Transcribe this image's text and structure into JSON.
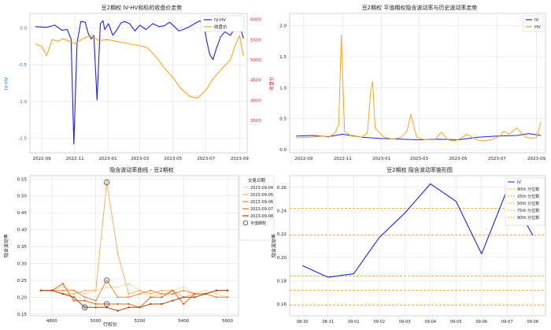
{
  "figure": {
    "panels": [
      {
        "title": "豆2期权 IV-HV和标的收盘价走势",
        "type": "line",
        "xticks": [
          "2022-09",
          "2022-11",
          "2023-01",
          "2023-03",
          "2023-05",
          "2023-07",
          "2023-09"
        ],
        "ylabel_left": "IV-HV",
        "ylabel_right": "收盘价",
        "yticks_left": [
          "0.0",
          "-0.5",
          "-1.0",
          "-1.5"
        ],
        "yticks_right": [
          "6000",
          "5500",
          "5000",
          "4500",
          "4000",
          "3500"
        ],
        "legend": [
          "IV-HV",
          "收盘价"
        ]
      },
      {
        "title": "豆2期权 平值期权隐含波动率与历史波动率走势",
        "type": "line",
        "xticks": [
          "2022-09",
          "2022-11",
          "2023-01",
          "2023-03",
          "2023-05",
          "2023-07",
          "2023-09"
        ],
        "yticks": [
          "2.0",
          "1.5",
          "1.0",
          "0.5",
          "0.0"
        ],
        "legend": [
          "IV",
          "HV"
        ]
      },
      {
        "title": "隐含波动率曲线 - 豆2期权",
        "type": "line",
        "xlabel": "行权价",
        "ylabel": "隐含波动率",
        "xticks": [
          "4800",
          "5000",
          "5200",
          "5400",
          "5600"
        ],
        "yticks": [
          "0.55",
          "0.50",
          "0.45",
          "0.40",
          "0.35",
          "0.30",
          "0.25",
          "0.20",
          "0.15"
        ],
        "legend_title": "交易日期",
        "legend": [
          "2023-09-04",
          "2023-09-05",
          "2023-09-06",
          "2023-09-07",
          "2023-09-08",
          "平值期权"
        ]
      },
      {
        "title": "豆2期权 隐含波动率锥形图",
        "type": "line",
        "ylabel": "隐含波动率",
        "xticks": [
          "08-30",
          "08-31",
          "09-01",
          "09-02",
          "09-03",
          "09-04",
          "09-05",
          "09-06",
          "09-07",
          "09-08"
        ],
        "yticks": [
          "0.26",
          "0.24",
          "0.22",
          "0.20",
          "0.18",
          "0.16"
        ],
        "legend": [
          "IV",
          "90th 分位数",
          "25th 分位数",
          "50th 分位数",
          "75th 分位数",
          "90th 分位数"
        ]
      }
    ]
  },
  "chart_data": [
    {
      "type": "line",
      "title": "豆2期权 IV-HV和标的收盘价走势",
      "ylabel": "IV-HV",
      "y2label": "收盘价",
      "ylim": [
        -1.7,
        0.2
      ],
      "y2lim": [
        2700,
        6150
      ],
      "x_range": [
        "2022-08-10",
        "2023-09-15"
      ],
      "series": [
        {
          "name": "IV-HV",
          "color": "#1f22e0",
          "axis": "left",
          "x": [
            "2022-08-20",
            "2022-09-10",
            "2022-09-25",
            "2022-10-08",
            "2022-10-18",
            "2022-10-25",
            "2022-10-30",
            "2022-11-05",
            "2022-11-12",
            "2022-11-20",
            "2022-11-26",
            "2022-12-01",
            "2022-12-06",
            "2022-12-12",
            "2022-12-18",
            "2022-12-23",
            "2022-12-26",
            "2023-01-02",
            "2023-01-10",
            "2023-01-18",
            "2023-01-25",
            "2023-02-01",
            "2023-02-10",
            "2023-02-20",
            "2023-03-01",
            "2023-03-12",
            "2023-03-25",
            "2023-04-05",
            "2023-04-15",
            "2023-04-25",
            "2023-05-05",
            "2023-05-12",
            "2023-05-20",
            "2023-06-01",
            "2023-06-10",
            "2023-06-20",
            "2023-06-28",
            "2023-07-03",
            "2023-07-08",
            "2023-07-14",
            "2023-07-20",
            "2023-07-28",
            "2023-08-05",
            "2023-08-15",
            "2023-08-25",
            "2023-09-02",
            "2023-09-08"
          ],
          "values": [
            0.02,
            0.01,
            0.04,
            -0.03,
            -0.02,
            -0.15,
            -1.58,
            -0.2,
            0.09,
            0.08,
            -0.08,
            -0.15,
            -0.1,
            -0.98,
            0.06,
            0.1,
            -0.02,
            0.06,
            -0.1,
            -0.02,
            0.07,
            0.09,
            0.06,
            -0.04,
            0.04,
            -0.02,
            0.06,
            0.02,
            0.03,
            0.08,
            0.01,
            -0.04,
            -0.02,
            0.02,
            0.06,
            0.1,
            0.0,
            -0.2,
            -0.36,
            -0.43,
            -0.28,
            -0.12,
            -0.05,
            -0.1,
            0.02,
            0.02,
            -0.14
          ]
        },
        {
          "name": "收盘价",
          "color": "#f5a623",
          "axis": "right",
          "x": [
            "2022-08-20",
            "2022-09-01",
            "2022-09-10",
            "2022-09-20",
            "2022-10-01",
            "2022-10-10",
            "2022-10-20",
            "2022-11-01",
            "2022-11-15",
            "2022-12-01",
            "2022-12-15",
            "2023-01-01",
            "2023-01-15",
            "2023-02-01",
            "2023-02-15",
            "2023-03-01",
            "2023-03-15",
            "2023-04-01",
            "2023-04-15",
            "2023-05-01",
            "2023-05-15",
            "2023-06-01",
            "2023-06-15",
            "2023-07-01",
            "2023-07-15",
            "2023-08-01",
            "2023-08-15",
            "2023-08-25",
            "2023-09-01",
            "2023-09-08"
          ],
          "values": [
            5400,
            5330,
            5100,
            5500,
            5460,
            5520,
            5470,
            5400,
            5520,
            5600,
            5480,
            5500,
            5460,
            5420,
            5380,
            5350,
            5300,
            5050,
            4800,
            4560,
            4300,
            4100,
            4050,
            4250,
            4550,
            4800,
            5000,
            5400,
            5600,
            5100
          ]
        }
      ]
    },
    {
      "type": "line",
      "title": "豆2期权 平值期权隐含波动率与历史波动率走势",
      "ylim": [
        -0.05,
        2.2
      ],
      "x_range": [
        "2022-08-10",
        "2023-09-15"
      ],
      "series": [
        {
          "name": "IV",
          "color": "#1f22e0",
          "x": [
            "2022-08-20",
            "2022-09-15",
            "2022-10-10",
            "2022-11-01",
            "2022-12-01",
            "2023-01-01",
            "2023-02-01",
            "2023-03-01",
            "2023-04-01",
            "2023-05-01",
            "2023-06-01",
            "2023-07-01",
            "2023-08-01",
            "2023-08-20",
            "2023-09-08"
          ],
          "values": [
            0.22,
            0.23,
            0.21,
            0.25,
            0.2,
            0.18,
            0.17,
            0.16,
            0.17,
            0.16,
            0.2,
            0.22,
            0.23,
            0.26,
            0.23
          ]
        },
        {
          "name": "HV",
          "color": "#f5a623",
          "x": [
            "2022-08-20",
            "2022-09-10",
            "2022-10-01",
            "2022-10-10",
            "2022-10-20",
            "2022-10-26",
            "2022-10-30",
            "2022-11-04",
            "2022-11-15",
            "2022-12-01",
            "2022-12-10",
            "2022-12-15",
            "2022-12-18",
            "2022-12-22",
            "2023-01-05",
            "2023-01-20",
            "2023-02-01",
            "2023-02-10",
            "2023-02-16",
            "2023-02-25",
            "2023-03-10",
            "2023-03-25",
            "2023-04-05",
            "2023-04-15",
            "2023-04-25",
            "2023-05-05",
            "2023-05-15",
            "2023-05-30",
            "2023-06-10",
            "2023-06-25",
            "2023-07-05",
            "2023-07-12",
            "2023-07-20",
            "2023-08-01",
            "2023-08-15",
            "2023-08-25",
            "2023-09-01",
            "2023-09-08"
          ],
          "values": [
            0.19,
            0.2,
            0.22,
            0.2,
            0.27,
            0.4,
            1.85,
            0.3,
            0.22,
            0.2,
            0.27,
            0.95,
            1.1,
            0.35,
            0.2,
            0.17,
            0.2,
            0.3,
            0.57,
            0.2,
            0.16,
            0.16,
            0.28,
            0.16,
            0.14,
            0.18,
            0.25,
            0.16,
            0.14,
            0.17,
            0.22,
            0.3,
            0.25,
            0.35,
            0.2,
            0.18,
            0.2,
            0.45
          ]
        }
      ]
    },
    {
      "type": "line",
      "title": "隐含波动率曲线 - 豆2期权",
      "xlabel": "行权价",
      "ylabel": "隐含波动率",
      "xlim": [
        4700,
        5650
      ],
      "ylim": [
        0.145,
        0.56
      ],
      "series": [
        {
          "name": "2023-09-04",
          "color": "#fcd6a8",
          "x": [
            4750,
            4800,
            4850,
            4900,
            4950,
            5000,
            5050,
            5100,
            5150,
            5200,
            5250,
            5300,
            5350,
            5400,
            5450,
            5500,
            5550,
            5600
          ],
          "values": [
            0.22,
            0.22,
            0.23,
            0.22,
            0.21,
            0.22,
            0.23,
            0.23,
            0.24,
            0.22,
            0.2,
            0.21,
            0.22,
            0.23,
            0.21,
            0.22,
            0.21,
            0.2
          ]
        },
        {
          "name": "2023-09-05",
          "color": "#f9b06b",
          "x": [
            4750,
            4800,
            4850,
            4900,
            4950,
            5000,
            5050,
            5100,
            5150,
            5200,
            5250,
            5300,
            5350,
            5400,
            5450,
            5500,
            5550,
            5600
          ],
          "values": [
            0.22,
            0.22,
            0.21,
            0.21,
            0.22,
            0.22,
            0.54,
            0.33,
            0.21,
            0.22,
            0.21,
            0.22,
            0.22,
            0.2,
            0.21,
            0.21,
            0.2,
            0.2
          ]
        },
        {
          "name": "2023-09-06",
          "color": "#f08a3c",
          "x": [
            4750,
            4800,
            4850,
            4900,
            4950,
            5000,
            5050,
            5100,
            5150,
            5200,
            5250,
            5300,
            5350,
            5400,
            5450,
            5500,
            5550,
            5600
          ],
          "values": [
            0.22,
            0.22,
            0.22,
            0.22,
            0.2,
            0.19,
            0.25,
            0.2,
            0.2,
            0.21,
            0.22,
            0.21,
            0.21,
            0.22,
            0.21,
            0.21,
            0.2,
            0.2
          ]
        },
        {
          "name": "2023-09-07",
          "color": "#db6d1e",
          "x": [
            4750,
            4800,
            4850,
            4900,
            4950,
            5000,
            5050,
            5100,
            5150,
            5200,
            5250,
            5300,
            5350,
            5400,
            5450,
            5500,
            5550,
            5600
          ],
          "values": [
            0.22,
            0.22,
            0.24,
            0.19,
            0.19,
            0.18,
            0.18,
            0.18,
            0.18,
            0.17,
            0.2,
            0.2,
            0.22,
            0.18,
            0.21,
            0.21,
            0.22,
            0.22
          ]
        },
        {
          "name": "2023-09-08",
          "color": "#a8410e",
          "x": [
            4750,
            4800,
            4850,
            4900,
            4950,
            5000,
            5050,
            5100,
            5150,
            5200,
            5250,
            5300,
            5350,
            5400,
            5450,
            5500,
            5550,
            5600
          ],
          "values": [
            0.22,
            0.22,
            0.21,
            0.2,
            0.17,
            0.17,
            0.17,
            0.16,
            0.17,
            0.17,
            0.18,
            0.18,
            0.19,
            0.2,
            0.2,
            0.21,
            0.22,
            0.22
          ]
        }
      ],
      "atm_points": {
        "name": "平值期权",
        "x": [
          4950,
          5050,
          5050,
          5050,
          4950
        ],
        "values": [
          0.17,
          0.54,
          0.25,
          0.18,
          0.17
        ]
      }
    },
    {
      "type": "line",
      "title": "豆2期权 隐含波动率锥形图",
      "ylabel": "隐含波动率",
      "ylim": [
        0.15,
        0.27
      ],
      "categories": [
        "08-30",
        "08-31",
        "09-01",
        "09-02",
        "09-03",
        "09-04",
        "09-05",
        "09-06",
        "09-07",
        "09-08"
      ],
      "series": [
        {
          "name": "IV",
          "color": "#1f22e0",
          "values": [
            0.193,
            0.183,
            0.186,
            0.217,
            0.238,
            0.263,
            0.248,
            0.203,
            0.258,
            0.219
          ]
        }
      ],
      "hlines": [
        {
          "name": "90th 分位数",
          "value": 0.242,
          "color": "#f5a623"
        },
        {
          "name": "25th 分位数",
          "value": 0.219,
          "color": "#f5a623"
        },
        {
          "name": "50th 分位数",
          "value": 0.184,
          "color": "#f5a623"
        },
        {
          "name": "75th 分位数",
          "value": 0.172,
          "color": "#f5a623"
        },
        {
          "name": "90th 分位数",
          "value": 0.159,
          "color": "#f5a623"
        }
      ]
    }
  ]
}
